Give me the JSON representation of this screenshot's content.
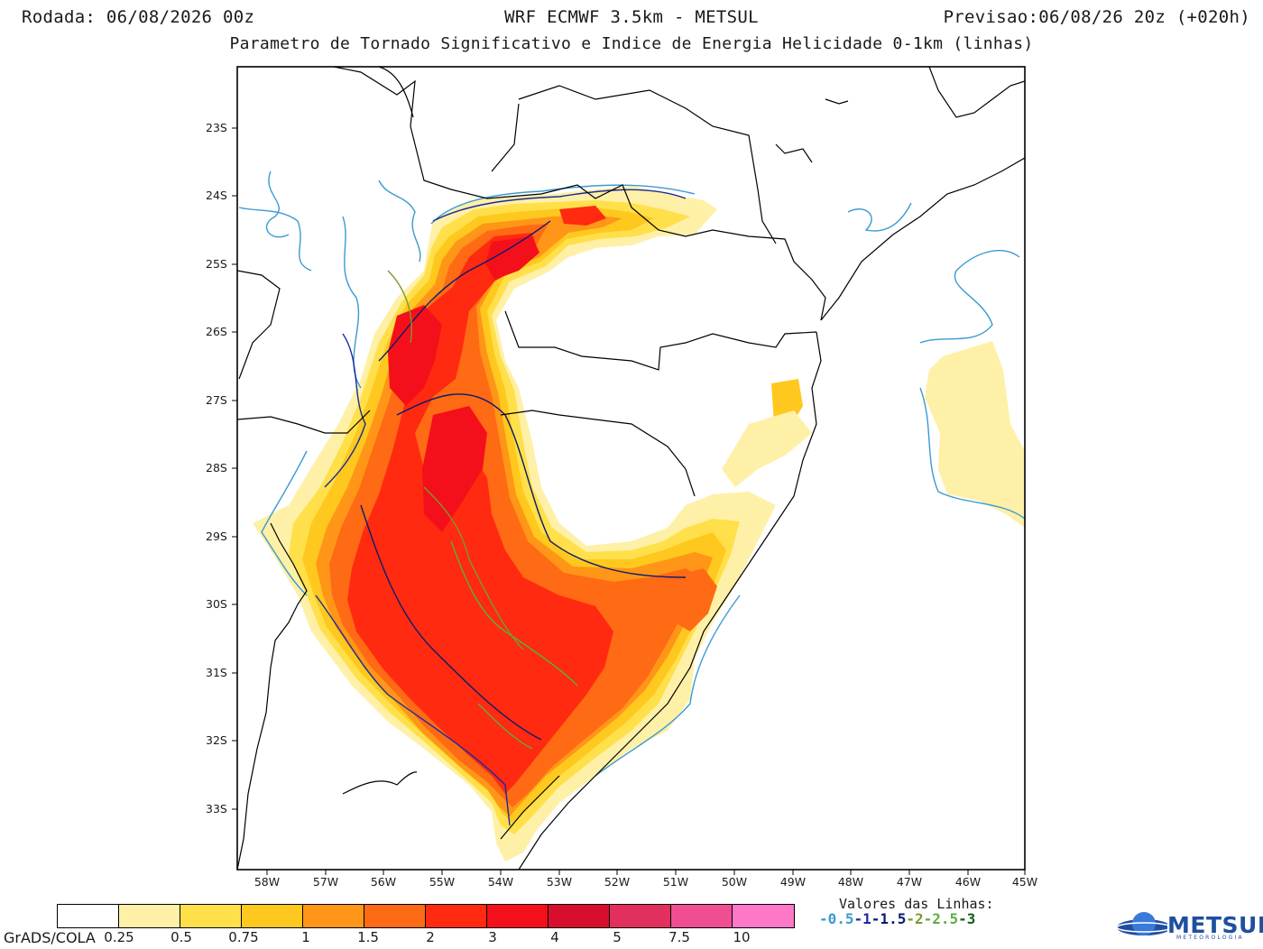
{
  "header": {
    "run": "Rodada: 06/08/2026 00z",
    "model": "WRF ECMWF 3.5km - METSUL",
    "forecast": "Previsao:06/08/26 20z (+020h)",
    "subtitle": "Parametro de Tornado Significativo e Indice de Energia Helicidade 0-1km (linhas)"
  },
  "axes": {
    "lat_ticks": [
      "23S",
      "24S",
      "25S",
      "26S",
      "27S",
      "28S",
      "29S",
      "30S",
      "31S",
      "32S",
      "33S"
    ],
    "lon_ticks": [
      "58W",
      "57W",
      "56W",
      "55W",
      "54W",
      "53W",
      "52W",
      "51W",
      "50W",
      "49W",
      "48W",
      "47W",
      "46W",
      "45W"
    ]
  },
  "colorbar": {
    "colors": [
      "#ffffff",
      "#fff0a8",
      "#ffe04a",
      "#ffc81e",
      "#ff9618",
      "#ff6a14",
      "#ff2a10",
      "#f4101a",
      "#d80e2e",
      "#e2305e",
      "#f04e92",
      "#ff78c8"
    ],
    "labels": [
      "0.25",
      "0.5",
      "0.75",
      "1",
      "1.5",
      "2",
      "3",
      "4",
      "5",
      "7.5",
      "10"
    ]
  },
  "footer": {
    "software": "GrADS/COLA",
    "lines_title": "Valores das Linhas:",
    "lines": [
      {
        "text": "-0.5",
        "color": "#3a9ad0"
      },
      {
        "text": "-1",
        "color": "#1a2a9a"
      },
      {
        "text": "-1.5",
        "color": "#0a1a70"
      },
      {
        "text": "-2",
        "color": "#7a9a30"
      },
      {
        "text": "-2.5",
        "color": "#5ab040"
      },
      {
        "text": "-3",
        "color": "#1a5a1a"
      }
    ],
    "logo": "METSUL",
    "logo_sub": "METEOROLOGIA"
  }
}
